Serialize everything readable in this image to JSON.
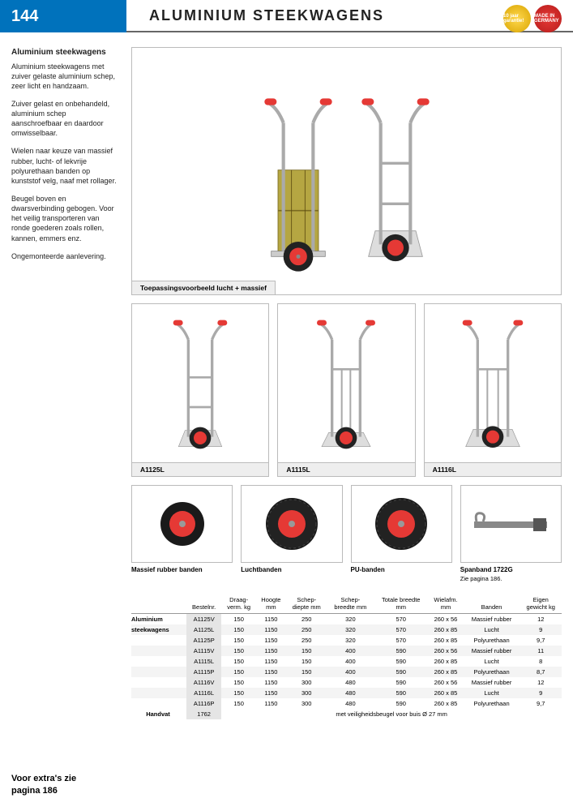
{
  "page_number": "144",
  "title": "ALUMINIUM STEEKWAGENS",
  "badges": {
    "warranty": "10 jaar garantie!",
    "made_in": "MADE IN GERMANY"
  },
  "sidebar": {
    "heading": "Aluminium steekwagens",
    "p1": "Aluminium steekwagens met zuiver gelaste aluminium schep, zeer licht en handzaam.",
    "p2": "Zuiver gelast en onbehandeld, aluminium schep aanschroefbaar en daardoor omwisselbaar.",
    "p3": "Wielen naar keuze van massief rubber, lucht- of lekvrije polyurethaan banden op kunststof velg, naaf met rollager.",
    "p4": "Beugel boven en dwarsverbinding gebogen. Voor het veilig transporteren van ronde goederen zoals rollen, kannen, emmers enz.",
    "p5": "Ongemonteerde aanlevering."
  },
  "footer": {
    "line1": "Voor extra's zie",
    "line2": "pagina 186"
  },
  "hero_caption": "Toepassingsvoorbeeld lucht + massief",
  "products": [
    {
      "code": "A1125L"
    },
    {
      "code": "A1115L"
    },
    {
      "code": "A1116L"
    }
  ],
  "wheel_labels": [
    {
      "label": "Massief rubber banden"
    },
    {
      "label": "Luchtbanden"
    },
    {
      "label": "PU-banden"
    },
    {
      "label": "Spanband 1722G",
      "sub": "Zie pagina 186."
    }
  ],
  "table": {
    "row_label_1": "Aluminium",
    "row_label_2": "steekwagens",
    "row_label_handvat": "Handvat",
    "headers": [
      "Bestelnr.",
      "Draag-\nverm. kg",
      "Hoogte\nmm",
      "Schep-\ndiepte mm",
      "Schep-\nbreedte mm",
      "Totale breedte\nmm",
      "Wielafm.\nmm",
      "Banden",
      "Eigen\ngewicht kg"
    ],
    "rows": [
      [
        "A1125V",
        "150",
        "1150",
        "250",
        "320",
        "570",
        "260 x 56",
        "Massief rubber",
        "12"
      ],
      [
        "A1125L",
        "150",
        "1150",
        "250",
        "320",
        "570",
        "260 x 85",
        "Lucht",
        "9"
      ],
      [
        "A1125P",
        "150",
        "1150",
        "250",
        "320",
        "570",
        "260 x 85",
        "Polyurethaan",
        "9,7"
      ],
      [
        "A1115V",
        "150",
        "1150",
        "150",
        "400",
        "590",
        "260 x 56",
        "Massief rubber",
        "11"
      ],
      [
        "A1115L",
        "150",
        "1150",
        "150",
        "400",
        "590",
        "260 x 85",
        "Lucht",
        "8"
      ],
      [
        "A1115P",
        "150",
        "1150",
        "150",
        "400",
        "590",
        "260 x 85",
        "Polyurethaan",
        "8,7"
      ],
      [
        "A1116V",
        "150",
        "1150",
        "300",
        "480",
        "590",
        "260 x 56",
        "Massief rubber",
        "12"
      ],
      [
        "A1116L",
        "150",
        "1150",
        "300",
        "480",
        "590",
        "260 x 85",
        "Lucht",
        "9"
      ],
      [
        "A1116P",
        "150",
        "1150",
        "300",
        "480",
        "590",
        "260 x 85",
        "Polyurethaan",
        "9,7"
      ]
    ],
    "handvat_code": "1762",
    "handvat_note": "met veiligheidsbeugel voor buis Ø 27 mm"
  },
  "colors": {
    "blue": "#0072bc",
    "red": "#e53935",
    "grey": "#bbb",
    "lightgrey": "#eee"
  }
}
